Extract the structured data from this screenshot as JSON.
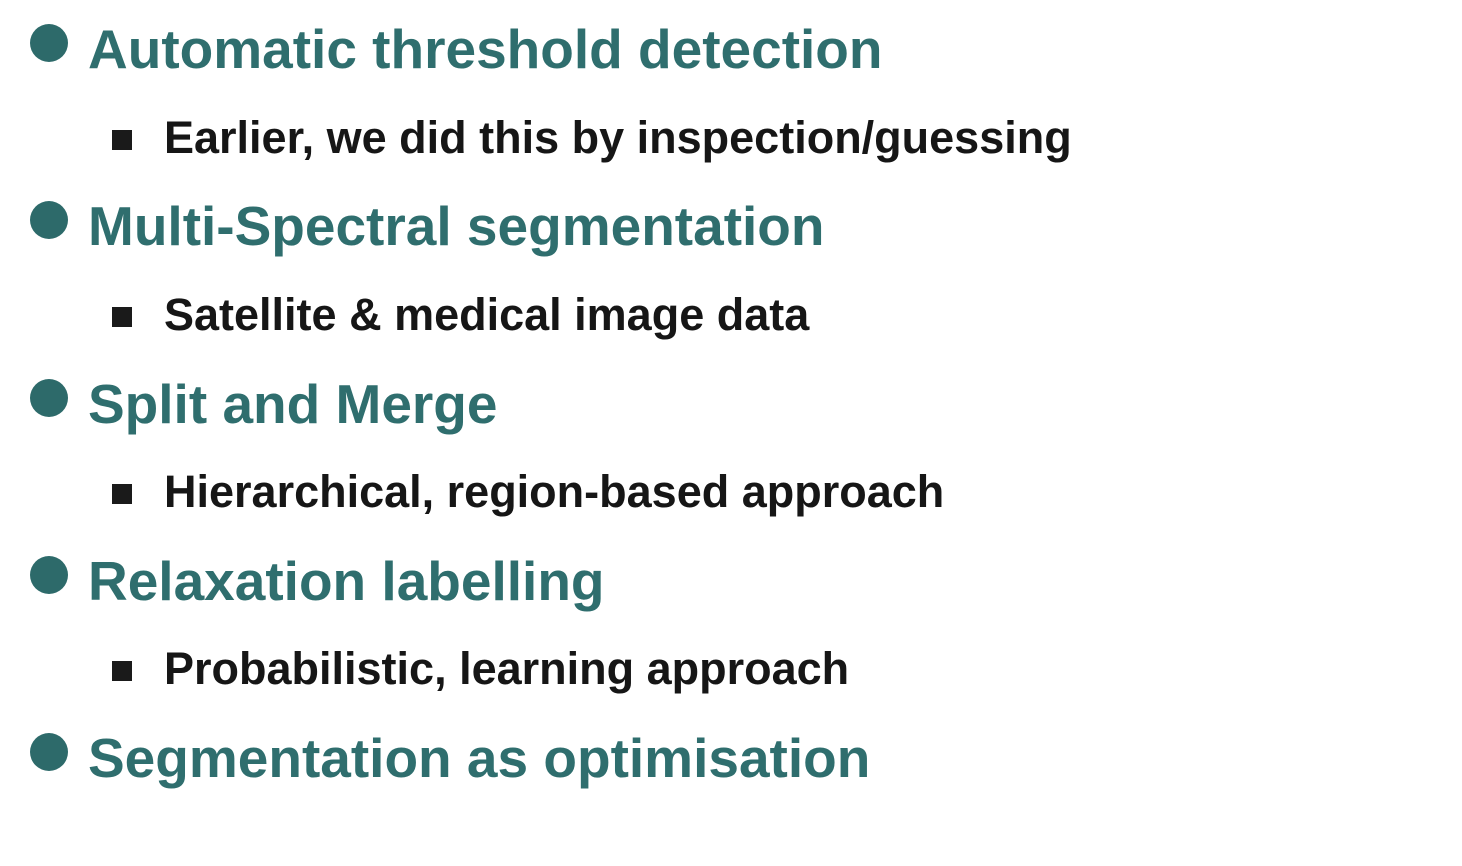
{
  "bullets": [
    {
      "title": "Automatic threshold detection",
      "sub": "Earlier, we did this by inspection/guessing"
    },
    {
      "title": "Multi-Spectral segmentation",
      "sub": "Satellite & medical image data"
    },
    {
      "title": "Split and Merge",
      "sub": "Hierarchical, region-based approach"
    },
    {
      "title": "Relaxation labelling",
      "sub": "Probabilistic, learning approach"
    },
    {
      "title": "Segmentation as optimisation"
    }
  ],
  "colors": {
    "heading": "#2f6e6e",
    "bullet": "#2d6a6a",
    "subtext": "#161616"
  }
}
